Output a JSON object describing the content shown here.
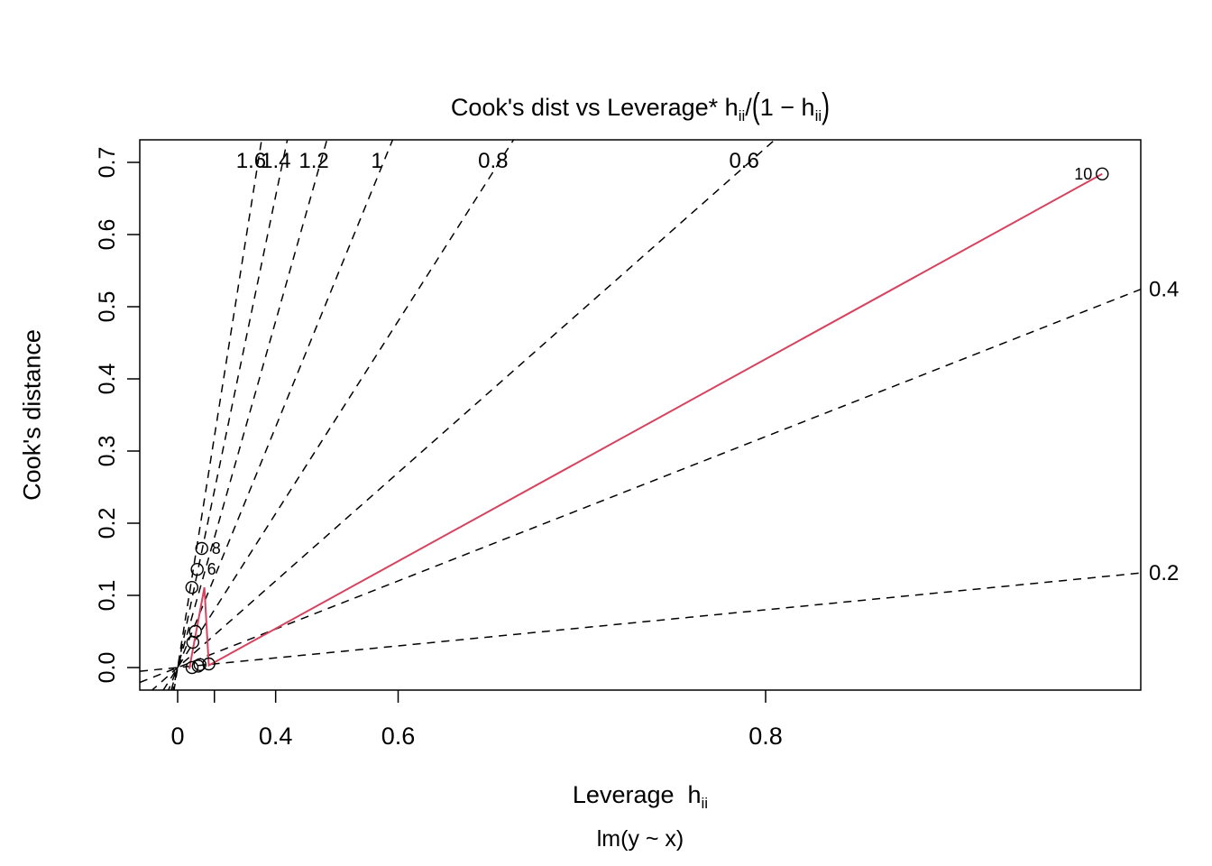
{
  "chart_data": {
    "type": "scatter",
    "title_parts": {
      "pre": "Cook's dist vs Leverage* h",
      "sub1": "ii",
      "slash": "/",
      "lparen": "(",
      "inner": "1 − h",
      "sub2": "ii",
      "rparen": ")"
    },
    "xlabel_parts": {
      "pre": "Leverage  h",
      "sub": "ii"
    },
    "subtitle": "lm(y ~ x)",
    "ylabel": "Cook's distance",
    "x_axis": {
      "scale": "h/(1-h)",
      "ticks": [
        {
          "h": 0,
          "label": "0"
        },
        {
          "h": 0.2,
          "label": ""
        },
        {
          "h": 0.4,
          "label": "0.4"
        },
        {
          "h": 0.6,
          "label": "0.6"
        },
        {
          "h": 0.8,
          "label": "0.8"
        }
      ]
    },
    "y_axis": {
      "tick_values": [
        0.0,
        0.1,
        0.2,
        0.3,
        0.4,
        0.5,
        0.6,
        0.7
      ],
      "tick_labels": [
        "0.0",
        "0.1",
        "0.2",
        "0.3",
        "0.4",
        "0.5",
        "0.6",
        "0.7"
      ]
    },
    "contours": {
      "p": 2,
      "lines": [
        {
          "level": 1.6,
          "label": "1.6",
          "label_edge": "top"
        },
        {
          "level": 1.4,
          "label": "1.4",
          "label_edge": "top"
        },
        {
          "level": 1.2,
          "label": "1.2",
          "label_edge": "top"
        },
        {
          "level": 1.0,
          "label": "1",
          "label_edge": "top"
        },
        {
          "level": 0.8,
          "label": "0.8",
          "label_edge": "top"
        },
        {
          "level": 0.6,
          "label": "0.6",
          "label_edge": "top"
        },
        {
          "level": 0.4,
          "label": "0.4",
          "label_edge": "right"
        },
        {
          "level": 0.2,
          "label": "0.2",
          "label_edge": "right"
        }
      ]
    },
    "points": [
      {
        "g": 0.098,
        "d": 0.0,
        "label": "",
        "label_side": ""
      },
      {
        "g": 0.152,
        "d": 0.004,
        "label": "",
        "label_side": ""
      },
      {
        "g": 0.212,
        "d": 0.005,
        "label": "",
        "label_side": ""
      },
      {
        "g": 0.14,
        "d": 0.002,
        "label": "",
        "label_side": ""
      },
      {
        "g": 0.103,
        "d": 0.035,
        "label": "",
        "label_side": ""
      },
      {
        "g": 0.121,
        "d": 0.05,
        "label": "",
        "label_side": ""
      },
      {
        "g": 0.097,
        "d": 0.111,
        "label": "",
        "label_side": ""
      },
      {
        "g": 0.133,
        "d": 0.136,
        "label": "6",
        "label_side": "right"
      },
      {
        "g": 0.164,
        "d": 0.165,
        "label": "8",
        "label_side": "right"
      },
      {
        "g": 6.29,
        "d": 0.684,
        "label": "10",
        "label_side": "left"
      }
    ],
    "smooth_line": [
      [
        0.079,
        -0.002
      ],
      [
        0.182,
        0.111
      ],
      [
        0.212,
        0.003
      ],
      [
        6.29,
        0.684
      ]
    ],
    "colors": {
      "smooth": "#d6435f",
      "contour": "#000000",
      "points": "#000000",
      "axis": "#000000"
    }
  }
}
